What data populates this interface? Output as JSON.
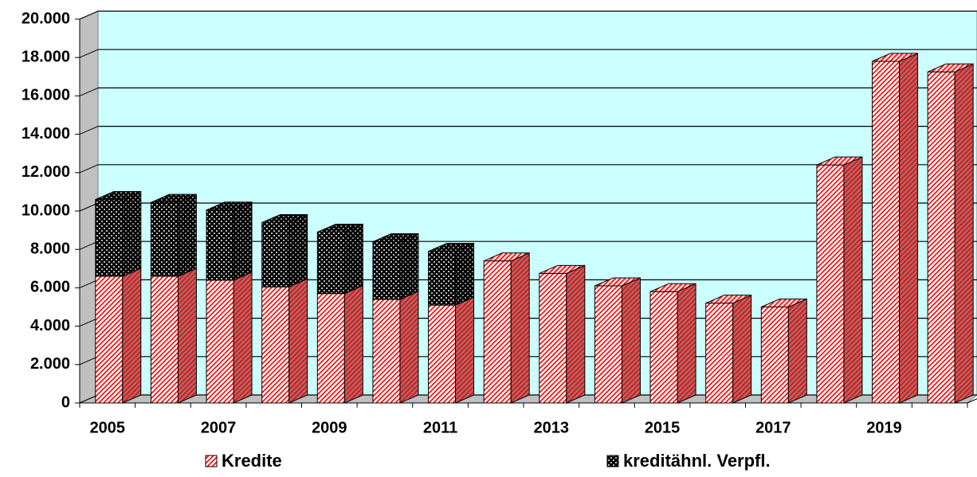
{
  "chart_data": {
    "type": "bar3d_stacked",
    "categories": [
      "2005",
      null,
      "2007",
      null,
      "2009",
      null,
      "2011",
      null,
      "2013",
      null,
      "2015",
      null,
      "2017",
      null,
      "2019",
      null
    ],
    "series": [
      {
        "name": "Kredite",
        "color": "#ff0000",
        "pattern": "diagonal",
        "values": [
          6600,
          6600,
          6400,
          6050,
          5700,
          5400,
          5100,
          7400,
          6750,
          6100,
          5800,
          5200,
          5000,
          12400,
          17800,
          17250
        ]
      },
      {
        "name": "kreditähnl. Verpfl.",
        "color": "#000000",
        "pattern": "checker",
        "values": [
          4000,
          3850,
          3650,
          3350,
          3200,
          3000,
          2800,
          null,
          null,
          null,
          null,
          null,
          null,
          null,
          null,
          null
        ]
      }
    ],
    "ylim": [
      0,
      20000
    ],
    "yticks": [
      0,
      {
        "value": 2000,
        "label": "2.000"
      },
      {
        "value": 4000,
        "label": "4.000"
      },
      {
        "value": 6000,
        "label": "6.000"
      },
      {
        "value": 8000,
        "label": "8.000"
      },
      {
        "value": 10000,
        "label": "10.000"
      },
      {
        "value": 12000,
        "label": "12.000"
      },
      {
        "value": 14000,
        "label": "14.000"
      },
      {
        "value": 16000,
        "label": "16.000"
      },
      {
        "value": 18000,
        "label": "18.000"
      },
      {
        "value": 20000,
        "label": "20.000"
      }
    ],
    "grid": true,
    "wall_color": "#ccffff",
    "legend": "bottom"
  }
}
